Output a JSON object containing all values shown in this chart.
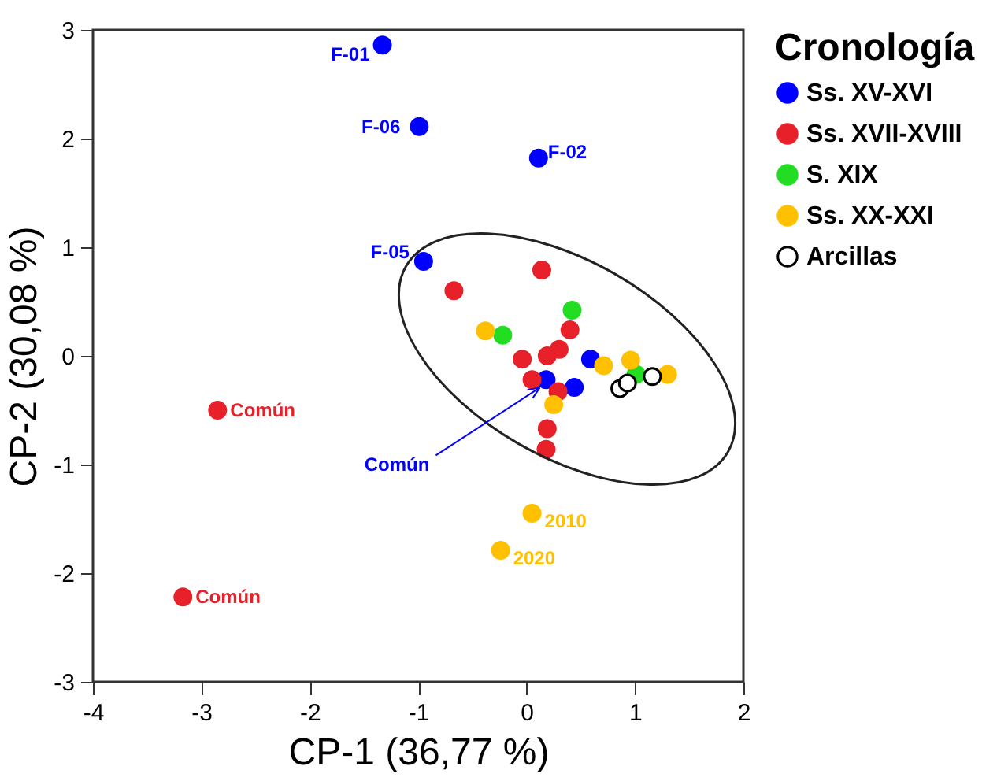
{
  "chart_data": {
    "type": "scatter",
    "xlabel": "CP-1 (36,77 %)",
    "ylabel": "CP-2 (30,08 %)",
    "legend_title": "Cronología",
    "xlim": [
      -4,
      2
    ],
    "xticks": [
      -4,
      -3,
      -2,
      -1,
      0,
      1,
      2
    ],
    "ylim": [
      -3,
      3
    ],
    "yticks": [
      -3,
      -2,
      -1,
      0,
      1,
      2,
      3
    ],
    "grid": false,
    "legend": "right",
    "marker": "circle",
    "series": [
      {
        "name": "Ss. XV-XVI",
        "color": "#0000ff",
        "x": [
          -1.33,
          -0.99,
          0.11,
          -0.95,
          0.59,
          0.18,
          0.44
        ],
        "values": [
          2.86,
          2.11,
          1.82,
          0.87,
          -0.03,
          -0.22,
          -0.29
        ]
      },
      {
        "name": "Ss. XVII-XVIII",
        "color": "#e8202a",
        "x": [
          0.14,
          -0.67,
          0.4,
          0.3,
          0.19,
          -0.04,
          0.05,
          0.29,
          0.19,
          0.18,
          -2.85,
          -3.17
        ],
        "values": [
          0.79,
          0.6,
          0.24,
          0.06,
          0.0,
          -0.03,
          -0.22,
          -0.33,
          -0.67,
          -0.86,
          -0.5,
          -2.22
        ]
      },
      {
        "name": "S. XIX",
        "color": "#22dd22",
        "x": [
          0.42,
          -0.22,
          1.01
        ],
        "values": [
          0.42,
          0.19,
          -0.17
        ]
      },
      {
        "name": "Ss. XX-XXI",
        "color": "#ffc000",
        "x": [
          -0.38,
          0.71,
          0.96,
          1.3,
          0.25,
          0.05,
          -0.24
        ],
        "values": [
          0.23,
          -0.09,
          -0.04,
          -0.17,
          -0.45,
          -1.45,
          -1.79
        ]
      },
      {
        "name": "Arcillas",
        "color": "#000000",
        "marker": "circle-open",
        "x": [
          0.86,
          0.93,
          1.16
        ],
        "values": [
          -0.3,
          -0.25,
          -0.19
        ]
      }
    ],
    "annotations": [
      {
        "text": "F-01",
        "x": -1.33,
        "y": 2.86
      },
      {
        "text": "F-06",
        "x": -0.99,
        "y": 2.11
      },
      {
        "text": "F-02",
        "x": 0.11,
        "y": 1.82
      },
      {
        "text": "F-05",
        "x": -0.95,
        "y": 0.87
      },
      {
        "text": "Común",
        "x": 0.18,
        "y": -0.22
      },
      {
        "text": "Común",
        "x": -2.85,
        "y": -0.5
      },
      {
        "text": "Común",
        "x": -3.17,
        "y": -2.22
      },
      {
        "text": "2010",
        "x": 0.05,
        "y": -1.45
      },
      {
        "text": "2020",
        "x": -0.24,
        "y": -1.79
      }
    ]
  }
}
